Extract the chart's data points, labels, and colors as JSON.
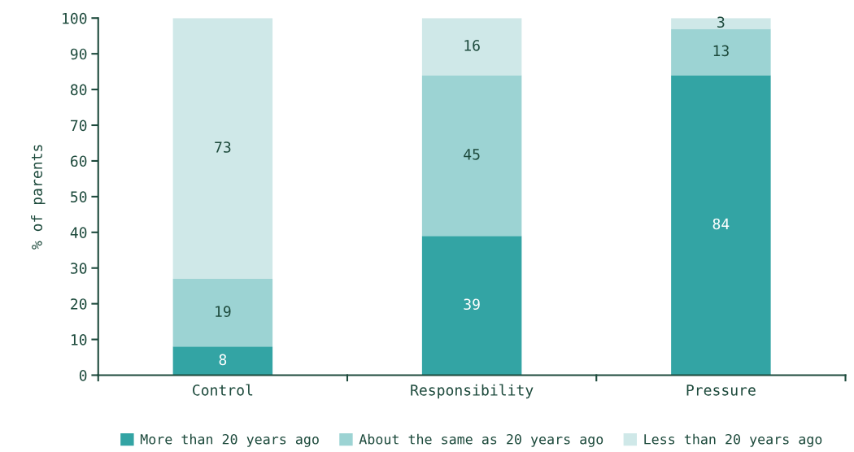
{
  "chart_data": {
    "type": "bar",
    "stacked": true,
    "ylabel": "% of parents",
    "categories": [
      "Control",
      "Responsibility",
      "Pressure"
    ],
    "series": [
      {
        "name": "More than 20 years ago",
        "color": "#33a4a4",
        "values": [
          8,
          39,
          84
        ]
      },
      {
        "name": "About the same as 20 years ago",
        "color": "#9cd3d3",
        "values": [
          19,
          45,
          13
        ]
      },
      {
        "name": "Less than 20 years ago",
        "color": "#cfe8e8",
        "values": [
          73,
          16,
          3
        ]
      }
    ],
    "ylim": [
      0,
      100
    ],
    "yticks": [
      0,
      10,
      20,
      30,
      40,
      50,
      60,
      70,
      80,
      90,
      100
    ],
    "data_labels": true,
    "grid": false,
    "legend": "bottom"
  }
}
